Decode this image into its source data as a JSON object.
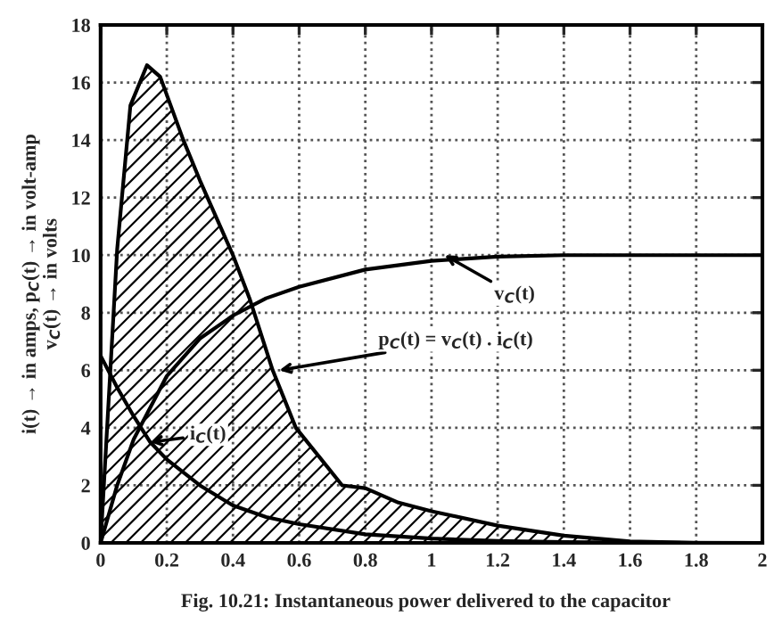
{
  "chart_data": {
    "type": "line",
    "ylabel": "i(t) → in amps, p$_{C}$(t) → in volt-amp\nv$_{C}$(t) → in volts",
    "xlim": [
      0,
      2
    ],
    "ylim": [
      0,
      18
    ],
    "xticks": [
      0,
      0.2,
      0.4,
      0.6,
      0.8,
      1,
      1.2,
      1.4,
      1.6,
      1.8,
      2
    ],
    "yticks": [
      0,
      2,
      4,
      6,
      8,
      10,
      12,
      14,
      16,
      18
    ],
    "grid": true,
    "line_style": "solid",
    "marker": "none",
    "series": [
      {
        "type": "area",
        "color": "#000000",
        "x": [
          0,
          0.05,
          0.09,
          0.14,
          0.18,
          0.25,
          0.3,
          0.4,
          0.45,
          0.52,
          0.59,
          0.66,
          0.73,
          0.8,
          0.9,
          1.0,
          1.2,
          1.4,
          1.6,
          1.8,
          2
        ],
        "values": [
          0,
          10.2,
          15.2,
          16.6,
          16.2,
          14.0,
          12.6,
          10.0,
          8.5,
          6.0,
          4.0,
          3.0,
          2.0,
          1.9,
          1.4,
          1.1,
          0.6,
          0.25,
          0.05,
          0,
          0
        ]
      },
      {
        "color": "#000000",
        "x": [
          0,
          0.05,
          0.1,
          0.15,
          0.2,
          0.3,
          0.4,
          0.5,
          0.6,
          0.8,
          1.0,
          1.2,
          1.4,
          1.6,
          2
        ],
        "values": [
          6.5,
          5.4,
          4.4,
          3.5,
          2.9,
          2.0,
          1.3,
          0.9,
          0.65,
          0.3,
          0.15,
          0.07,
          0.03,
          0.01,
          0
        ]
      },
      {
        "color": "#000000",
        "x": [
          0,
          0.05,
          0.1,
          0.2,
          0.3,
          0.4,
          0.5,
          0.6,
          0.8,
          1.0,
          1.2,
          1.4,
          2
        ],
        "values": [
          0,
          2.0,
          3.6,
          5.8,
          7.1,
          7.9,
          8.5,
          8.9,
          9.5,
          9.8,
          9.95,
          10,
          10
        ]
      }
    ],
    "annotations": [
      {
        "text": "v$_{C}$(t)",
        "x": 1.04,
        "y": 10.0
      },
      {
        "text": "p$_{C}$(t) = v$_{C}$(t) . i$_{C}$(t)",
        "x": 0.54,
        "y": 6.0
      },
      {
        "text": "i$_{C}$(t)",
        "x": 0.15,
        "y": 3.5
      },
      "Fig. 10.21: Instantaneous power delivered to the capacitor"
    ]
  }
}
